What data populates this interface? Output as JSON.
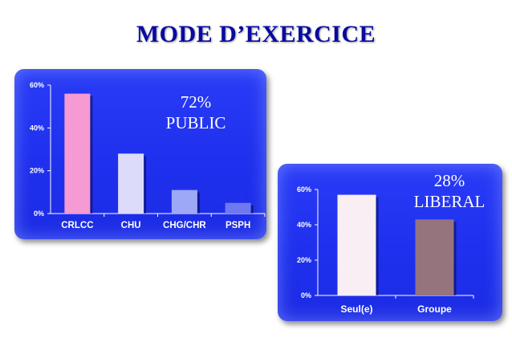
{
  "title": "MODE D’EXERCICE",
  "colors": {
    "title": "#0a0aa0",
    "panel": "#2233f0",
    "axis": "#ffffff",
    "text": "#ffffff"
  },
  "chart_data": [
    {
      "type": "bar",
      "categories": [
        "CRLCC",
        "CHU",
        "CHG/CHR",
        "PSPH"
      ],
      "values": [
        56,
        28,
        11,
        5
      ],
      "bar_colors": [
        "#f59ad2",
        "#dcdcfa",
        "#9da8f6",
        "#6f78f0"
      ],
      "yticks": [
        "60%",
        "40%",
        "20%",
        "0%"
      ],
      "ylim": [
        0,
        60
      ],
      "grid": false,
      "legend": "none",
      "annotation": {
        "percent": "72%",
        "label": "PUBLIC"
      }
    },
    {
      "type": "bar",
      "categories": [
        "Seul(e)",
        "Groupe"
      ],
      "values": [
        57,
        43
      ],
      "bar_colors": [
        "#f8eef4",
        "#96747e"
      ],
      "yticks": [
        "60%",
        "40%",
        "20%",
        "0%"
      ],
      "ylim": [
        0,
        60
      ],
      "grid": false,
      "legend": "none",
      "annotation": {
        "percent": "28%",
        "label": "LIBERAL"
      }
    }
  ]
}
